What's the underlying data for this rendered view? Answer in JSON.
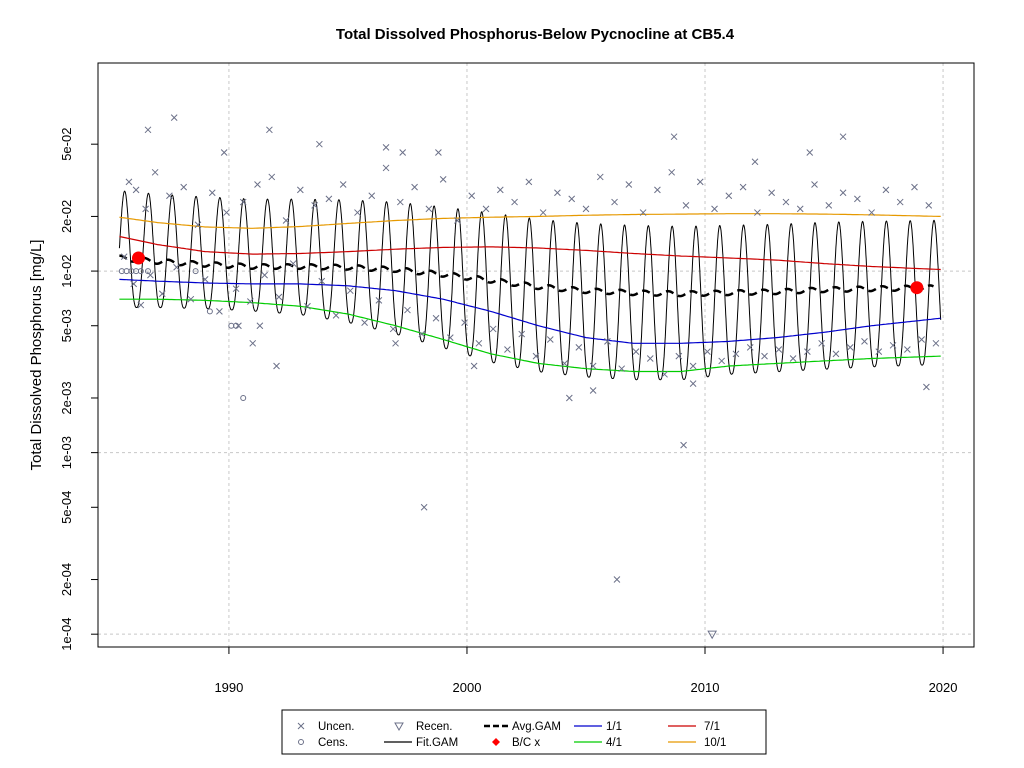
{
  "chart_data": {
    "type": "scatter",
    "title": "Total Dissolved Phosphorus-Below Pycnocline at CB5.4",
    "xlabel": "",
    "ylabel": "Total Dissolved Phosphorus [mg/L]",
    "xlim": [
      1984.5,
      2021.3
    ],
    "ylim": [
      8.5e-05,
      0.14
    ],
    "log_y": true,
    "grid": true,
    "x_ticks": [
      1990,
      2000,
      2010,
      2020
    ],
    "x_tick_labels": [
      "1990",
      "2000",
      "2010",
      "2020"
    ],
    "y_ticks": [
      0.0001,
      0.0002,
      0.0005,
      0.001,
      0.002,
      0.005,
      0.01,
      0.02,
      0.05
    ],
    "y_tick_labels": [
      "1e-04",
      "2e-04",
      "5e-04",
      "1e-03",
      "2e-03",
      "5e-03",
      "1e-02",
      "2e-02",
      "5e-02"
    ],
    "series": [
      {
        "name": "Avg.GAM",
        "color": "#000000",
        "style": "dashed",
        "x": [
          1985.4,
          1987,
          1989,
          1991,
          1993,
          1995,
          1997,
          1999,
          2001,
          2003,
          2005,
          2007,
          2009,
          2011,
          2013,
          2015,
          2017,
          2019.6
        ],
        "y": [
          0.0118,
          0.0113,
          0.0109,
          0.0106,
          0.0106,
          0.0105,
          0.0102,
          0.0096,
          0.0089,
          0.0082,
          0.0078,
          0.0076,
          0.0075,
          0.0076,
          0.0077,
          0.0079,
          0.008,
          0.0081
        ]
      },
      {
        "name": "1/1",
        "color": "#0000cd",
        "x": [
          1985.4,
          1987,
          1989,
          1991,
          1993,
          1995,
          1997,
          1999,
          2001,
          2003,
          2005,
          2007,
          2009,
          2011,
          2013,
          2015,
          2017,
          2019.9
        ],
        "y": [
          0.009,
          0.0088,
          0.0086,
          0.0085,
          0.0085,
          0.0083,
          0.0078,
          0.007,
          0.006,
          0.005,
          0.0043,
          0.004,
          0.004,
          0.0041,
          0.0043,
          0.0046,
          0.005,
          0.0055
        ]
      },
      {
        "name": "4/1",
        "color": "#00cc00",
        "x": [
          1985.4,
          1987,
          1989,
          1991,
          1993,
          1995,
          1997,
          1999,
          2001,
          2003,
          2005,
          2007,
          2009,
          2011,
          2013,
          2015,
          2017,
          2019.9
        ],
        "y": [
          0.007,
          0.007,
          0.0069,
          0.0067,
          0.0064,
          0.0058,
          0.005,
          0.0042,
          0.0035,
          0.0031,
          0.0029,
          0.0028,
          0.0028,
          0.003,
          0.0031,
          0.0032,
          0.0033,
          0.0034
        ]
      },
      {
        "name": "7/1",
        "color": "#cc0000",
        "x": [
          1985.4,
          1987,
          1989,
          1991,
          1993,
          1995,
          1997,
          1999,
          2001,
          2003,
          2005,
          2007,
          2009,
          2011,
          2013,
          2015,
          2017,
          2019.9
        ],
        "y": [
          0.0155,
          0.014,
          0.0128,
          0.0124,
          0.0125,
          0.0128,
          0.0132,
          0.0135,
          0.0136,
          0.0134,
          0.013,
          0.0125,
          0.0121,
          0.0118,
          0.0115,
          0.011,
          0.0106,
          0.0102
        ]
      },
      {
        "name": "10/1",
        "color": "#e69900",
        "x": [
          1985.4,
          1987,
          1989,
          1991,
          1993,
          1995,
          1997,
          1999,
          2001,
          2003,
          2005,
          2007,
          2009,
          2011,
          2013,
          2015,
          2017,
          2019.9
        ],
        "y": [
          0.0198,
          0.0185,
          0.0175,
          0.0172,
          0.0176,
          0.0183,
          0.019,
          0.0195,
          0.0198,
          0.02,
          0.0203,
          0.0205,
          0.0206,
          0.0207,
          0.0207,
          0.0206,
          0.0204,
          0.02
        ]
      },
      {
        "name": "Fit.GAM",
        "color": "#000000",
        "style": "seasonal",
        "years": [
          1985.4,
          2019.9
        ],
        "amplitude_low_high": "low = 4/1 curve, high ≈ 2.3 × Avg.GAM"
      },
      {
        "name": "B/C x",
        "color": "#ff0000",
        "x": [
          1986.2,
          2018.9
        ],
        "y": [
          0.0118,
          0.0081
        ]
      },
      {
        "name": "Uncen.",
        "color": "#6b7088",
        "marker": "x",
        "x": [
          1985.6,
          1985.8,
          1986.0,
          1986.1,
          1986.3,
          1986.5,
          1986.7,
          1986.9,
          1987.2,
          1987.5,
          1987.8,
          1988.1,
          1988.4,
          1988.7,
          1989.0,
          1989.3,
          1989.6,
          1989.9,
          1990.3,
          1990.6,
          1990.9,
          1991.2,
          1991.5,
          1991.8,
          1992.1,
          1992.4,
          1992.7,
          1993.0,
          1993.3,
          1993.6,
          1993.9,
          1994.2,
          1994.5,
          1994.8,
          1995.1,
          1995.4,
          1995.7,
          1996.0,
          1996.3,
          1996.6,
          1996.9,
          1997.2,
          1997.5,
          1997.8,
          1998.1,
          1998.4,
          1998.7,
          1999.0,
          1999.3,
          1999.6,
          1999.9,
          2000.2,
          2000.5,
          2000.8,
          2001.1,
          2001.4,
          2001.7,
          2002.0,
          2002.3,
          2002.6,
          2002.9,
          2003.2,
          2003.5,
          2003.8,
          2004.1,
          2004.4,
          2004.7,
          2005.0,
          2005.3,
          2005.6,
          2005.9,
          2006.2,
          2006.5,
          2006.8,
          2007.1,
          2007.4,
          2007.7,
          2008.0,
          2008.3,
          2008.6,
          2008.9,
          2009.2,
          2009.5,
          2009.8,
          2010.1,
          2010.4,
          2010.7,
          2011.0,
          2011.3,
          2011.6,
          2011.9,
          2012.2,
          2012.5,
          2012.8,
          2013.1,
          2013.4,
          2013.7,
          2014.0,
          2014.3,
          2014.6,
          2014.9,
          2015.2,
          2015.5,
          2015.8,
          2016.1,
          2016.4,
          2016.7,
          2017.0,
          2017.3,
          2017.6,
          2017.9,
          2018.2,
          2018.5,
          2018.8,
          2019.1,
          2019.4,
          2019.7,
          1986.6,
          1987.7,
          1989.8,
          1991.7,
          1993.8,
          1996.6,
          1998.2,
          2006.3,
          2008.7,
          2009.1,
          2015.8,
          1990.4,
          1991.0,
          1991.3,
          1992.0,
          1997.0,
          1997.3,
          1998.8,
          2000.3,
          2004.3,
          2005.3,
          2009.5,
          2012.1,
          2014.4,
          2019.3
        ],
        "y": [
          0.012,
          0.031,
          0.0085,
          0.028,
          0.0065,
          0.022,
          0.0095,
          0.035,
          0.0075,
          0.026,
          0.0105,
          0.029,
          0.007,
          0.018,
          0.009,
          0.027,
          0.006,
          0.021,
          0.008,
          0.024,
          0.0068,
          0.03,
          0.0095,
          0.033,
          0.0072,
          0.019,
          0.011,
          0.028,
          0.0064,
          0.023,
          0.0088,
          0.025,
          0.0057,
          0.03,
          0.0078,
          0.021,
          0.0052,
          0.026,
          0.0069,
          0.037,
          0.0048,
          0.024,
          0.0061,
          0.029,
          0.0045,
          0.022,
          0.0055,
          0.032,
          0.0043,
          0.019,
          0.0052,
          0.026,
          0.004,
          0.022,
          0.0048,
          0.028,
          0.0037,
          0.024,
          0.0045,
          0.031,
          0.0034,
          0.021,
          0.0042,
          0.027,
          0.0031,
          0.025,
          0.0038,
          0.022,
          0.003,
          0.033,
          0.0041,
          0.024,
          0.0029,
          0.03,
          0.0036,
          0.021,
          0.0033,
          0.028,
          0.0027,
          0.035,
          0.0034,
          0.023,
          0.003,
          0.031,
          0.0036,
          0.022,
          0.0032,
          0.026,
          0.0035,
          0.029,
          0.0038,
          0.021,
          0.0034,
          0.027,
          0.0037,
          0.024,
          0.0033,
          0.022,
          0.0036,
          0.03,
          0.004,
          0.023,
          0.0035,
          0.027,
          0.0038,
          0.025,
          0.0041,
          0.021,
          0.0036,
          0.028,
          0.0039,
          0.024,
          0.0037,
          0.029,
          0.0042,
          0.023,
          0.004,
          0.06,
          0.07,
          0.045,
          0.06,
          0.05,
          0.048,
          0.0005,
          0.0002,
          0.055,
          0.0011,
          0.055,
          0.005,
          0.004,
          0.005,
          0.003,
          0.004,
          0.045,
          0.045,
          0.003,
          0.002,
          0.0022,
          0.0024,
          0.04,
          0.045,
          0.0023
        ]
      },
      {
        "name": "Cens.",
        "color": "#6b7088",
        "marker": "circle",
        "x": [
          1985.5,
          1985.7,
          1985.9,
          1986.1,
          1986.3,
          1986.6,
          1988.6,
          1989.2,
          1990.1,
          1990.3,
          1990.6
        ],
        "y": [
          0.01,
          0.01,
          0.01,
          0.01,
          0.01,
          0.01,
          0.01,
          0.006,
          0.005,
          0.005,
          0.002
        ]
      },
      {
        "name": "Recen.",
        "color": "#6b7088",
        "marker": "triangle-down",
        "x": [
          2010.3
        ],
        "y": [
          0.0001
        ]
      }
    ],
    "legend": {
      "placement": "bottom-center",
      "entries": [
        {
          "label": "Uncen.",
          "symbol": "x",
          "color": "#6b7088"
        },
        {
          "label": "Cens.",
          "symbol": "circle",
          "color": "#6b7088"
        },
        {
          "label": "Recen.",
          "symbol": "triangle-down",
          "color": "#6b7088"
        },
        {
          "label": "Fit.GAM",
          "symbol": "line",
          "color": "#000000"
        },
        {
          "label": "Avg.GAM",
          "symbol": "dashed-line",
          "color": "#000000"
        },
        {
          "label": "B/C x",
          "symbol": "diamond",
          "color": "#ff0000"
        },
        {
          "label": "1/1",
          "symbol": "line",
          "color": "#0000cd"
        },
        {
          "label": "4/1",
          "symbol": "line",
          "color": "#00cc00"
        },
        {
          "label": "7/1",
          "symbol": "line",
          "color": "#cc0000"
        },
        {
          "label": "10/1",
          "symbol": "line",
          "color": "#e69900"
        }
      ]
    }
  }
}
